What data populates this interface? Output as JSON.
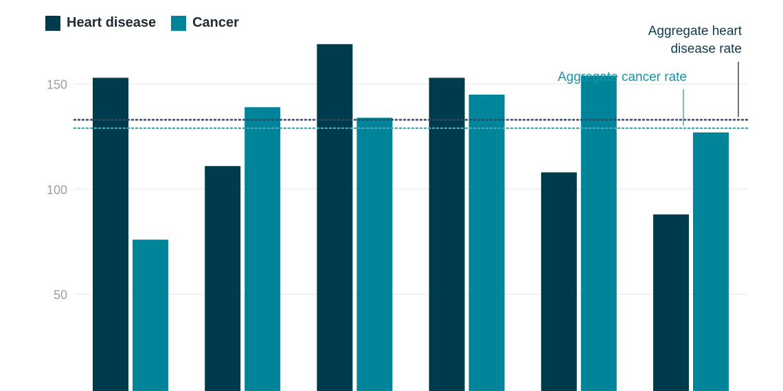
{
  "legend": {
    "items": [
      {
        "label": "Heart disease",
        "color": "#003a4d"
      },
      {
        "label": "Cancer",
        "color": "#00849a"
      }
    ]
  },
  "annotations": {
    "heart_label_lines": [
      "Aggregate heart",
      "disease rate"
    ],
    "cancer_label": "Aggregate cancer rate"
  },
  "colors": {
    "heart": "#003a4d",
    "cancer": "#00849a",
    "gridline": "#e6e6e6",
    "heart_reference": "#34495c",
    "cancer_reference": "#4aa5b5"
  },
  "chart_data": {
    "type": "bar",
    "categories": [
      "",
      "",
      "",
      "",
      "",
      ""
    ],
    "series": [
      {
        "name": "Heart disease",
        "values": [
          153,
          111,
          169,
          153,
          108,
          88
        ]
      },
      {
        "name": "Cancer",
        "values": [
          76,
          139,
          134,
          145,
          154,
          127
        ]
      }
    ],
    "reference_lines": [
      {
        "name": "Aggregate heart disease rate",
        "value": 133
      },
      {
        "name": "Aggregate cancer rate",
        "value": 129
      }
    ],
    "y_ticks": [
      50,
      100,
      150
    ],
    "ylim": [
      4,
      190
    ],
    "grid": true,
    "legend_position": "top-left",
    "title": "",
    "xlabel": "",
    "ylabel": ""
  }
}
